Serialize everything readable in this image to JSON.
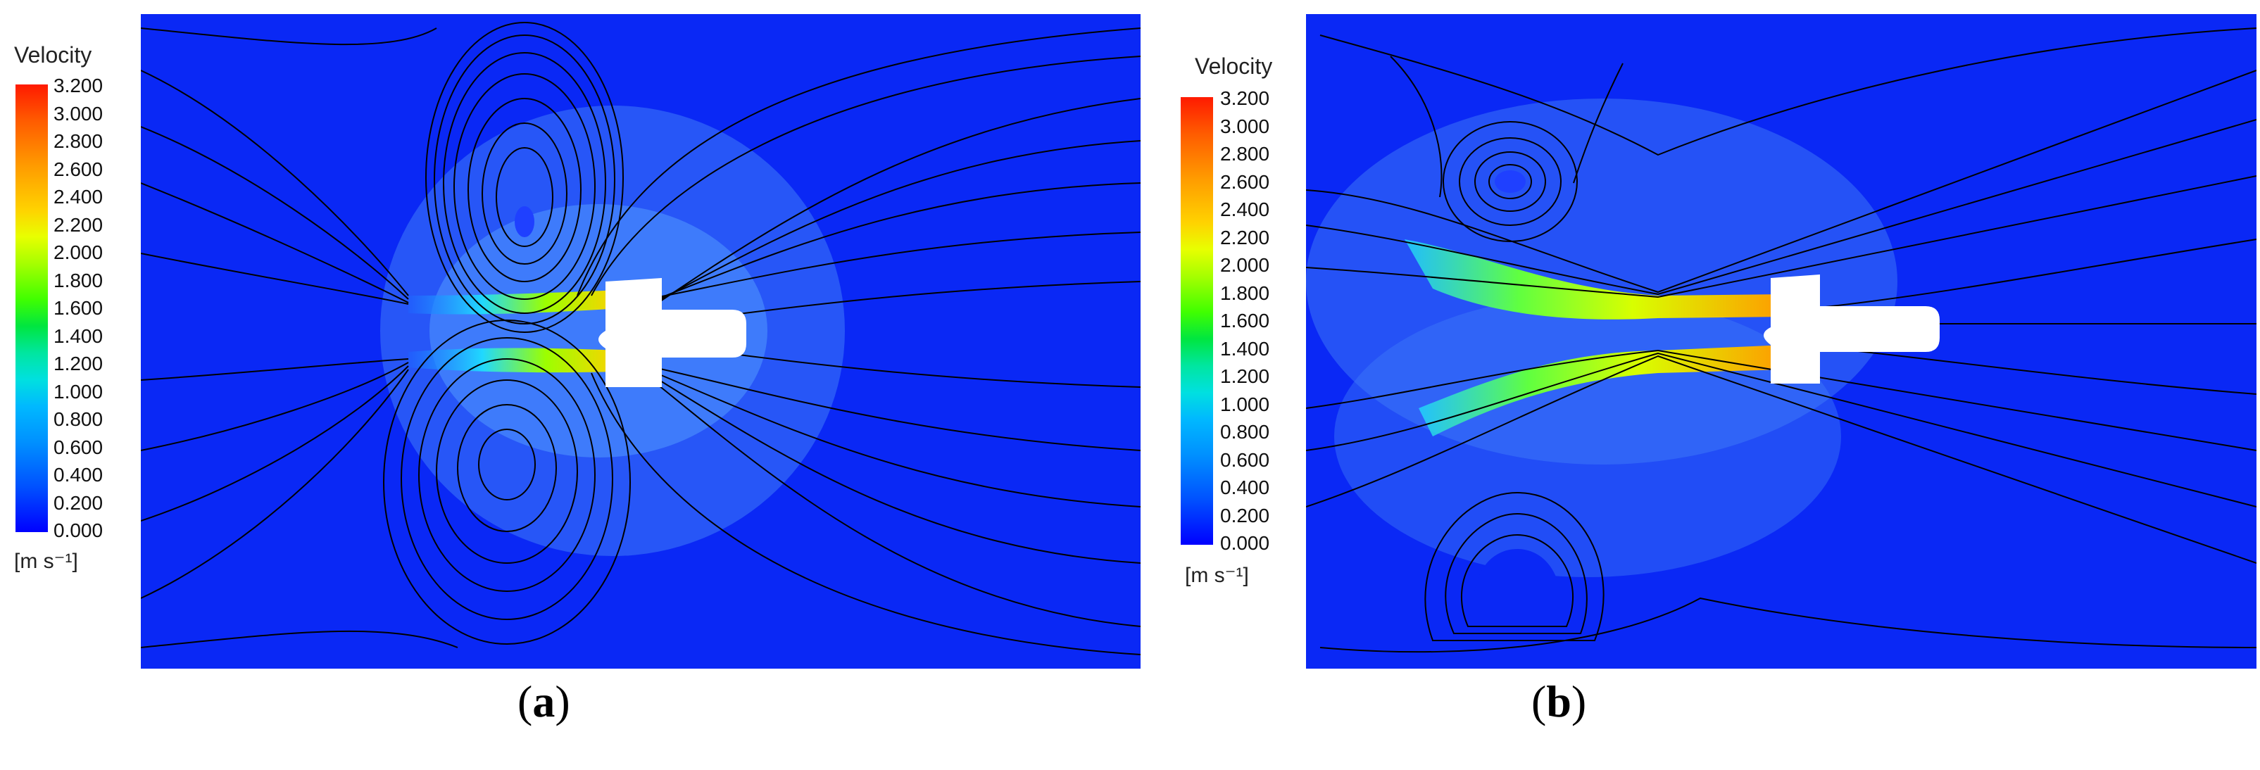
{
  "panels": [
    {
      "id": "a",
      "label_open": "(",
      "label_letter": "a",
      "label_close": ")",
      "legend_title": "Velocity",
      "unit": "[m s⁻¹]",
      "ticks": [
        "3.200",
        "3.000",
        "2.800",
        "2.600",
        "2.400",
        "2.200",
        "2.000",
        "1.800",
        "1.600",
        "1.400",
        "1.200",
        "1.000",
        "0.800",
        "0.600",
        "0.400",
        "0.200",
        "0.000"
      ]
    },
    {
      "id": "b",
      "label_open": "(",
      "label_letter": "b",
      "label_close": ")",
      "legend_title": "Velocity",
      "unit": "[m s⁻¹]",
      "ticks": [
        "3.200",
        "3.000",
        "2.800",
        "2.600",
        "2.400",
        "2.200",
        "2.000",
        "1.800",
        "1.600",
        "1.400",
        "1.200",
        "1.000",
        "0.800",
        "0.600",
        "0.400",
        "0.200",
        "0.000"
      ]
    }
  ],
  "colors": {
    "background_field": "#0a28f5",
    "streamline": "#000000",
    "jet_core": "#ffd000",
    "body": "#ffffff"
  }
}
